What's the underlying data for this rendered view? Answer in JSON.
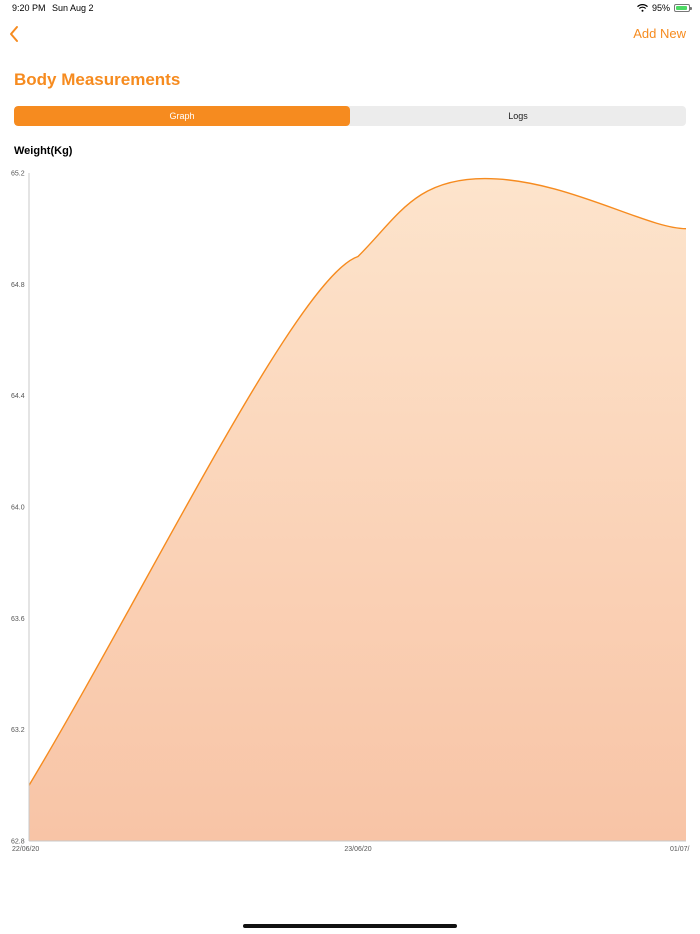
{
  "status_bar": {
    "time": "9:20 PM",
    "date": "Sun Aug 2",
    "battery": "95%",
    "battery_level": 0.95
  },
  "nav": {
    "add_new_label": "Add New",
    "accent_color": "#f68b1f"
  },
  "page": {
    "title": "Body Measurements"
  },
  "tabs": [
    {
      "label": "Graph",
      "active": true
    },
    {
      "label": "Logs",
      "active": false
    }
  ],
  "chart_label": "Weight(Kg)",
  "chart_data": {
    "type": "area",
    "title": "",
    "xlabel": "",
    "ylabel": "Weight(Kg)",
    "ylim": [
      62.8,
      65.2
    ],
    "yticks": [
      "65.2",
      "64.8",
      "64.4",
      "64.0",
      "63.6",
      "63.2",
      "62.8"
    ],
    "xticks": [
      "22/06/20",
      "23/06/20",
      "01/07/"
    ],
    "grid": false,
    "series": [
      {
        "points": [
          {
            "x": "22/06/20",
            "y": 63.0
          },
          {
            "x": "23/06/20",
            "y": 64.9
          },
          {
            "x": "01/07/",
            "y": 65.0
          }
        ],
        "color": "#f68b1f",
        "fill_top": "#fde4cc",
        "fill_bottom": "#f8c4a6"
      }
    ]
  }
}
